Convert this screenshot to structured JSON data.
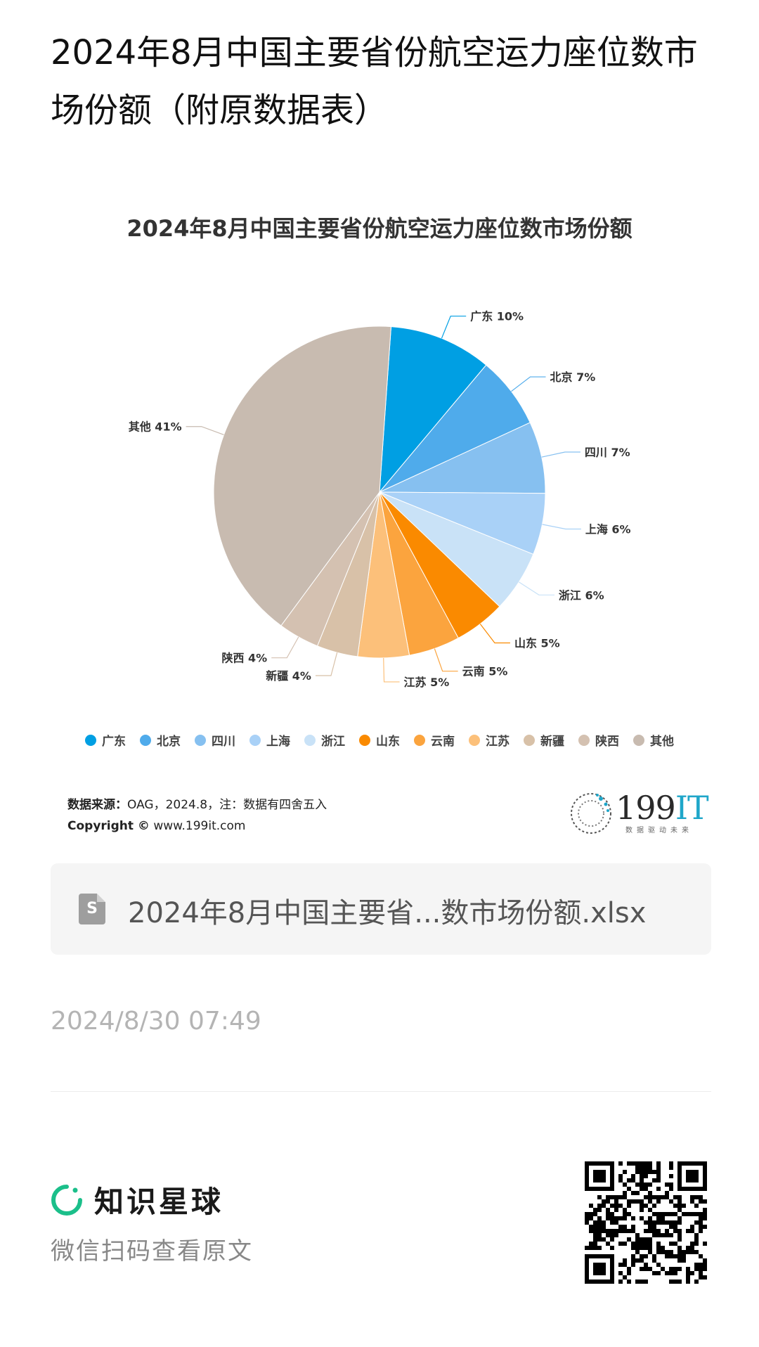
{
  "article": {
    "title": "2024年8月中国主要省份航空运力座位数市场份额（附原数据表）",
    "source_label": "数据来源：",
    "source_text": "OAG，2024.8，注：数据有四舍五入",
    "copyright_label": "Copyright ©",
    "copyright_text": "www.199it.com",
    "logo_number": "199",
    "logo_it": "IT",
    "logo_slogan": "数据驱动未来",
    "file_name": "2024年8月中国主要省...数市场份额.xlsx",
    "file_icon_letter": "S",
    "timestamp": "2024/8/30 07:49"
  },
  "footer": {
    "brand_name": "知识星球",
    "scan_hint": "微信扫码查看原文",
    "brand_color": "#1bbf8a"
  },
  "chart_data": {
    "type": "pie",
    "title": "2024年8月中国主要省份航空运力座位数市场份额",
    "unit": "%",
    "legend_position": "bottom",
    "categories": [
      "广东",
      "北京",
      "四川",
      "上海",
      "浙江",
      "山东",
      "云南",
      "江苏",
      "新疆",
      "陕西",
      "其他"
    ],
    "values": [
      10,
      7,
      7,
      6,
      6,
      5,
      5,
      5,
      4,
      4,
      41
    ],
    "labels": [
      "广东 10%",
      "北京 7%",
      "四川 7%",
      "上海 6%",
      "浙江 6%",
      "山东 5%",
      "云南 5%",
      "江苏 5%",
      "新疆 4%",
      "陕西 4%",
      "其他 41%"
    ],
    "colors": [
      "#009fe3",
      "#4fabeb",
      "#86c0f0",
      "#a9d1f7",
      "#c9e2f7",
      "#fa8a00",
      "#fba43e",
      "#fcc07a",
      "#d8c1a8",
      "#d4c1b1",
      "#c8bbb0"
    ]
  }
}
